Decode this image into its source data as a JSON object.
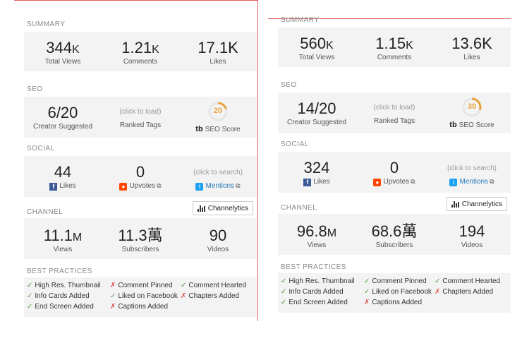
{
  "panels": [
    {
      "summary": {
        "title": "SUMMARY",
        "views": {
          "value": "344",
          "unit": "K",
          "label": "Total Views"
        },
        "comments": {
          "value": "1.21",
          "unit": "K",
          "label": "Comments"
        },
        "likes": {
          "value": "17.1K",
          "unit": "",
          "label": "Likes"
        }
      },
      "seo": {
        "title": "SEO",
        "creator": {
          "value": "6/20",
          "label": "Creator Suggested"
        },
        "tags": {
          "hint": "(click to load)",
          "label": "Ranked Tags"
        },
        "score": {
          "value": "20",
          "fraction": 0.2,
          "label": "SEO Score",
          "brand": "tb"
        }
      },
      "social": {
        "title": "SOCIAL",
        "likes": {
          "value": "44",
          "label": "Likes"
        },
        "upvotes": {
          "value": "0",
          "label": "Upvotes"
        },
        "mentions": {
          "hint": "(click to search)",
          "label": "Mentions"
        }
      },
      "channel": {
        "title": "CHANNEL",
        "button": "Channelytics",
        "views": {
          "value": "11.1",
          "unit": "M",
          "label": "Views"
        },
        "subscribers": {
          "value": "11.3萬",
          "label": "Subscribers"
        },
        "videos": {
          "value": "90",
          "label": "Videos"
        }
      },
      "best_practices": {
        "title": "BEST PRACTICES",
        "items": [
          {
            "label": "High Res. Thumbnail",
            "mark": "✓"
          },
          {
            "label": "Comment Pinned",
            "mark": "✗"
          },
          {
            "label": "Comment Hearted",
            "mark": "✓"
          },
          {
            "label": "Info Cards Added",
            "mark": "✓"
          },
          {
            "label": "Liked on Facebook",
            "mark": "✓"
          },
          {
            "label": "Chapters Added",
            "mark": "✗"
          },
          {
            "label": "End Screen Added",
            "mark": "✓"
          },
          {
            "label": "Captions Added",
            "mark": "✗"
          }
        ]
      }
    },
    {
      "summary": {
        "title": "SUMMARY",
        "views": {
          "value": "560",
          "unit": "K",
          "label": "Total Views"
        },
        "comments": {
          "value": "1.15",
          "unit": "K",
          "label": "Comments"
        },
        "likes": {
          "value": "13.6K",
          "unit": "",
          "label": "Likes"
        }
      },
      "seo": {
        "title": "SEO",
        "creator": {
          "value": "14/20",
          "label": "Creator Suggested"
        },
        "tags": {
          "hint": "(click to load)",
          "label": "Ranked Tags"
        },
        "score": {
          "value": "30",
          "fraction": 0.3,
          "label": "SEO Score",
          "brand": "tb"
        }
      },
      "social": {
        "title": "SOCIAL",
        "likes": {
          "value": "324",
          "label": "Likes"
        },
        "upvotes": {
          "value": "0",
          "label": "Upvotes"
        },
        "mentions": {
          "hint": "(click to search)",
          "label": "Mentions"
        }
      },
      "channel": {
        "title": "CHANNEL",
        "button": "Channelytics",
        "views": {
          "value": "96.8",
          "unit": "M",
          "label": "Views"
        },
        "subscribers": {
          "value": "68.6萬",
          "label": "Subscribers"
        },
        "videos": {
          "value": "194",
          "label": "Videos"
        }
      },
      "best_practices": {
        "title": "BEST PRACTICES",
        "items": [
          {
            "label": "High Res. Thumbnail",
            "mark": "✓"
          },
          {
            "label": "Comment Pinned",
            "mark": "✓"
          },
          {
            "label": "Comment Hearted",
            "mark": "✓"
          },
          {
            "label": "Info Cards Added",
            "mark": "✓"
          },
          {
            "label": "Liked on Facebook",
            "mark": "✓"
          },
          {
            "label": "Chapters Added",
            "mark": "✗"
          },
          {
            "label": "End Screen Added",
            "mark": "✓"
          },
          {
            "label": "Captions Added",
            "mark": "✗"
          }
        ]
      }
    }
  ],
  "colors": {
    "accent": "#e8a23a",
    "facebook": "#3b5998",
    "reddit": "#ff4500",
    "twitter": "#1da1f2",
    "ok": "#5a9a4a",
    "bad": "#d9534f"
  }
}
